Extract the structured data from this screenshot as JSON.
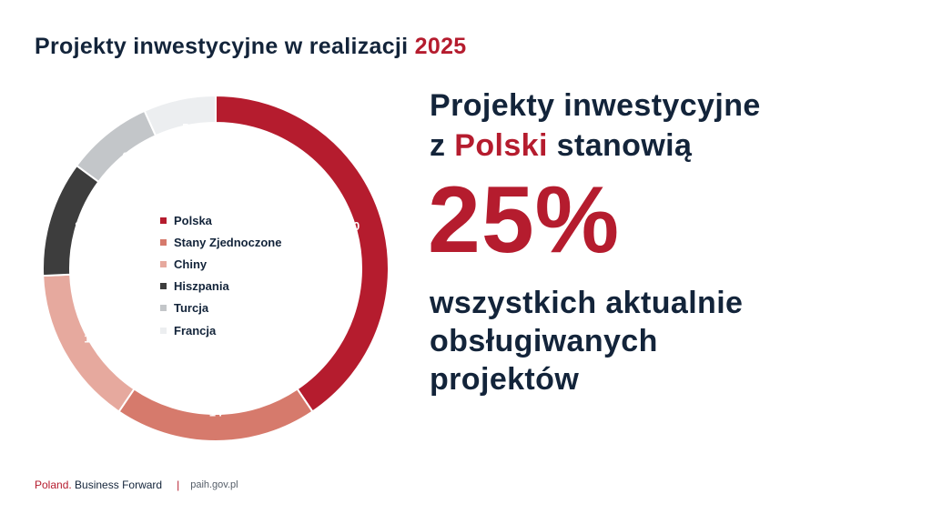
{
  "title": {
    "part1": "Projekty inwestycyjne w realizacji ",
    "year": "2025"
  },
  "chart_data": {
    "type": "pie",
    "donut": true,
    "title": "Projekty inwestycyjne w realizacji 2025",
    "categories": [
      "Polska",
      "Stany Zjednoczone",
      "Chiny",
      "Hiszpania",
      "Turcja",
      "Francja"
    ],
    "values": [
      30,
      14,
      11,
      8,
      6,
      5
    ],
    "colors": [
      "#b51c2e",
      "#d67a6c",
      "#e6a99e",
      "#3d3d3d",
      "#c3c6c9",
      "#eceef0"
    ],
    "label_colors": [
      "#ffffff",
      "#ffffff",
      "#ffffff",
      "#ffffff",
      "#ffffff",
      "#ffffff"
    ],
    "legend_position": "center"
  },
  "headline": {
    "line1": "Projekty inwestycyjne",
    "line2_pre": "z ",
    "line2_accent": "Polski",
    "line2_post": " stanowią",
    "percent": "25%",
    "sub_line1": "wszystkich aktualnie",
    "sub_line2": "obsługiwanych",
    "sub_line3": "projektów"
  },
  "footer": {
    "brand_accent": "Poland.",
    "brand_rest": " Business Forward",
    "separator": "|",
    "url": "paih.gov.pl"
  }
}
